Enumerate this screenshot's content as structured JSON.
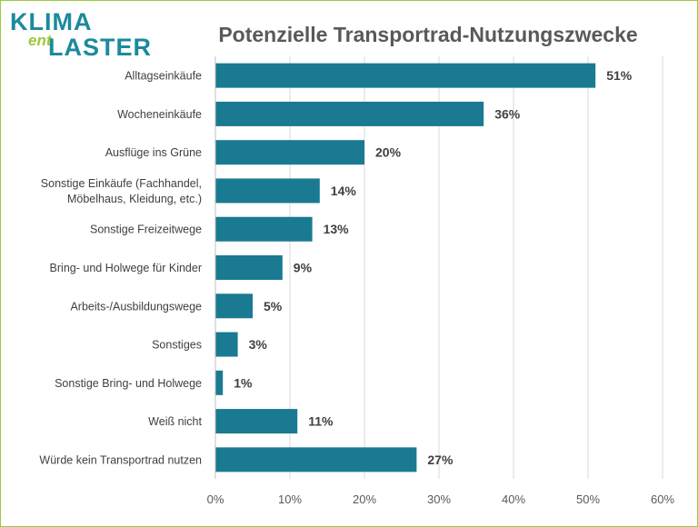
{
  "logo": {
    "part1": "KLIMA",
    "part2": "ent",
    "part3": "LASTER"
  },
  "chart_data": {
    "type": "bar",
    "orientation": "horizontal",
    "title": "Potenzielle Transportrad-Nutzungszwecke",
    "categories": [
      [
        "Alltagseinkäufe"
      ],
      [
        "Wocheneinkäufe"
      ],
      [
        "Ausflüge ins Grüne"
      ],
      [
        "Sonstige Einkäufe (Fachhandel,",
        "Möbelhaus, Kleidung, etc.)"
      ],
      [
        "Sonstige Freizeitwege"
      ],
      [
        "Bring- und Holwege für Kinder"
      ],
      [
        "Arbeits-/Ausbildungswege"
      ],
      [
        "Sonstiges"
      ],
      [
        "Sonstige Bring- und Holwege"
      ],
      [
        "Weiß nicht"
      ],
      [
        "Würde kein Transportrad nutzen"
      ]
    ],
    "values": [
      51,
      36,
      20,
      14,
      13,
      9,
      5,
      3,
      1,
      11,
      27
    ],
    "data_labels": [
      "51%",
      "36%",
      "20%",
      "14%",
      "13%",
      "9%",
      "5%",
      "3%",
      "1%",
      "11%",
      "27%"
    ],
    "xlim": [
      0,
      60
    ],
    "xticks": [
      0,
      10,
      20,
      30,
      40,
      50,
      60
    ],
    "xtick_labels": [
      "0%",
      "10%",
      "20%",
      "30%",
      "40%",
      "50%",
      "60%"
    ],
    "grid": true,
    "bar_color": "#1a7a92",
    "grid_color": "#d9d9d9"
  }
}
